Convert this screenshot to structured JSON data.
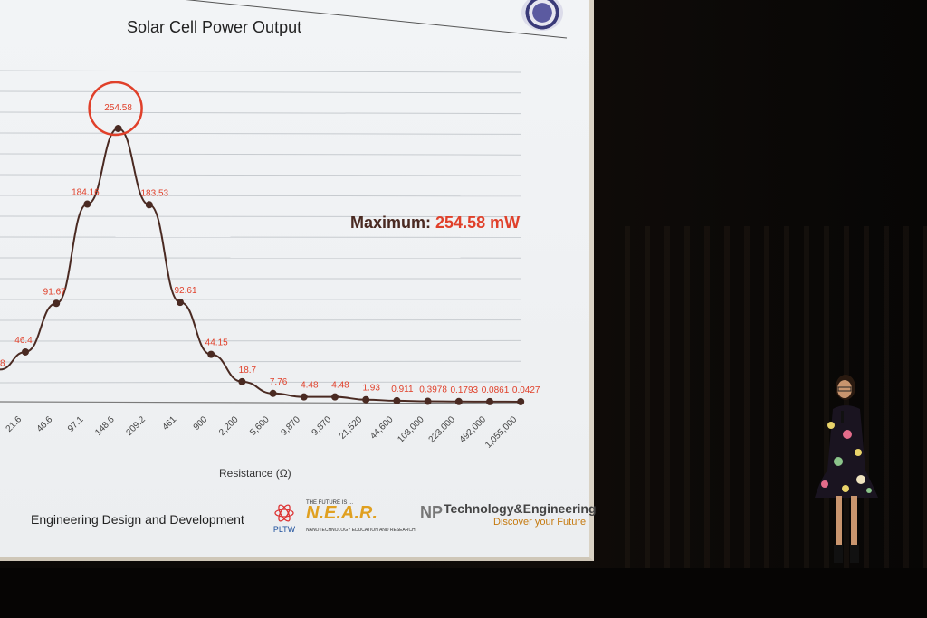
{
  "slide": {
    "title": "Solar Cell Power Output",
    "maximum_label": "Maximum:",
    "maximum_value": "254.58 mW",
    "footer_left": "Engineering Design and Development",
    "logos": {
      "pltw": "PLTW",
      "near": "N.E.A.R.",
      "near_top": "THE FUTURE IS ...",
      "near_sub": "NANOTECHNOLOGY EDUCATION AND RESEARCH",
      "np": "NP",
      "tech": "Technology&Engineering",
      "discover": "Discover your Future"
    }
  },
  "chart_data": {
    "type": "line",
    "title": "Solar Cell Power Output",
    "xlabel": "Resistance (Ω)",
    "ylabel": "",
    "categories": [
      "21.6",
      "46.6",
      "97.1",
      "148.6",
      "209.2",
      "461",
      "900",
      "2,200",
      "5,600",
      "9,870",
      "9,870",
      "21,520",
      "44,600",
      "103,000",
      "223,000",
      "492,000",
      "1,055,000"
    ],
    "values": [
      46.4,
      91.67,
      184.16,
      254.58,
      183.53,
      92.61,
      44.15,
      18.7,
      7.76,
      4.48,
      4.48,
      1.93,
      0.911,
      0.3978,
      0.1793,
      0.0861,
      0.0427
    ],
    "labels": [
      "46.4",
      "91.67",
      "184.16",
      "254.58",
      "183.53",
      "92.61",
      "44.15",
      "18.7",
      "7.76",
      "4.48",
      "4.48",
      "1.93",
      "0.911",
      "0.3978",
      "0.1793",
      "0.0861",
      "0.0427"
    ],
    "partial_left_label": "8",
    "highlight": "254.58",
    "grid": true,
    "colors": {
      "line": "#4a2a22",
      "label": "#e0402a",
      "circle": "#e0402a"
    }
  }
}
